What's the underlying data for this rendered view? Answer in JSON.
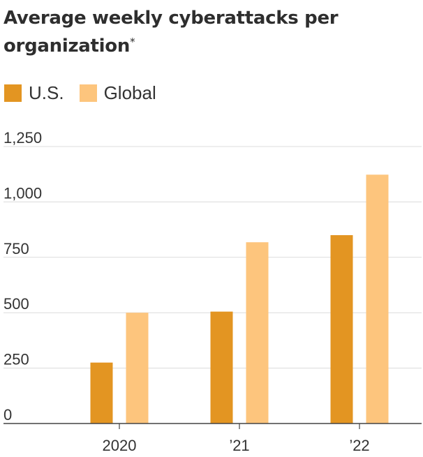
{
  "title": "Average weekly cyberattacks per organization",
  "title_marker": "*",
  "chart_data": {
    "type": "bar",
    "title": "Average weekly cyberattacks per organization*",
    "categories": [
      "2020",
      "’21",
      "’22"
    ],
    "series": [
      {
        "name": "U.S.",
        "color": "#e39522",
        "values": [
          275,
          505,
          850
        ]
      },
      {
        "name": "Global",
        "color": "#fdc57d",
        "values": [
          500,
          818,
          1123
        ]
      }
    ],
    "yticks": [
      "0",
      "250",
      "500",
      "750",
      "1,000",
      "1,250"
    ],
    "ytick_values": [
      0,
      250,
      500,
      750,
      1000,
      1250
    ],
    "ylim": [
      0,
      1250
    ],
    "xlabel": "",
    "ylabel": "",
    "grid": true,
    "legend": "top-left"
  }
}
